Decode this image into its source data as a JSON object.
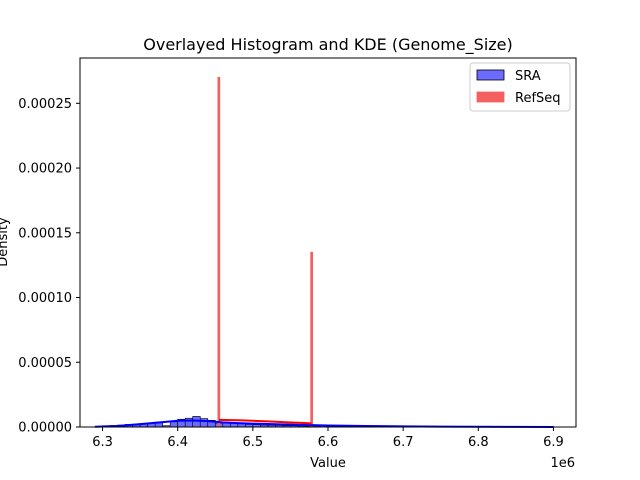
{
  "chart_data": {
    "type": "histogram-kde",
    "title": "Overlayed Histogram and KDE (Genome_Size)",
    "xlabel": "Value",
    "ylabel": "Density",
    "x_offset_label": "1e6",
    "xlim": [
      6.27,
      6.93
    ],
    "ylim": [
      0,
      0.000285
    ],
    "x_ticks": [
      6.3,
      6.4,
      6.5,
      6.6,
      6.7,
      6.8,
      6.9
    ],
    "x_tick_labels": [
      "6.3",
      "6.4",
      "6.5",
      "6.6",
      "6.7",
      "6.8",
      "6.9"
    ],
    "y_ticks": [
      0,
      5e-05,
      0.0001,
      0.00015,
      0.0002,
      0.00025
    ],
    "y_tick_labels": [
      "0.00000",
      "0.00005",
      "0.00010",
      "0.00015",
      "0.00020",
      "0.00025"
    ],
    "legend": {
      "placement": "top-right"
    },
    "series": [
      {
        "name": "SRA",
        "color": "#0000ff",
        "fill": "#6b6bff",
        "bins": [
          {
            "x0": 6.29,
            "x1": 6.3,
            "value": 5e-07
          },
          {
            "x0": 6.3,
            "x1": 6.31,
            "value": 1e-06
          },
          {
            "x0": 6.31,
            "x1": 6.32,
            "value": 1.2e-06
          },
          {
            "x0": 6.32,
            "x1": 6.33,
            "value": 1.5e-06
          },
          {
            "x0": 6.33,
            "x1": 6.34,
            "value": 2e-06
          },
          {
            "x0": 6.34,
            "x1": 6.35,
            "value": 2.2e-06
          },
          {
            "x0": 6.35,
            "x1": 6.36,
            "value": 2.8e-06
          },
          {
            "x0": 6.36,
            "x1": 6.37,
            "value": 3e-06
          },
          {
            "x0": 6.37,
            "x1": 6.38,
            "value": 3.8e-06
          },
          {
            "x0": 6.38,
            "x1": 6.39,
            "value": 1e-06
          },
          {
            "x0": 6.39,
            "x1": 6.4,
            "value": 4e-06
          },
          {
            "x0": 6.4,
            "x1": 6.41,
            "value": 6e-06
          },
          {
            "x0": 6.41,
            "x1": 6.42,
            "value": 6.8e-06
          },
          {
            "x0": 6.42,
            "x1": 6.43,
            "value": 8.2e-06
          },
          {
            "x0": 6.43,
            "x1": 6.44,
            "value": 6.5e-06
          },
          {
            "x0": 6.44,
            "x1": 6.45,
            "value": 5.2e-06
          },
          {
            "x0": 6.45,
            "x1": 6.46,
            "value": 3e-06
          },
          {
            "x0": 6.46,
            "x1": 6.47,
            "value": 3e-06
          },
          {
            "x0": 6.47,
            "x1": 6.48,
            "value": 2.8e-06
          },
          {
            "x0": 6.48,
            "x1": 6.49,
            "value": 2.5e-06
          },
          {
            "x0": 6.49,
            "x1": 6.5,
            "value": 2e-06
          },
          {
            "x0": 6.5,
            "x1": 6.51,
            "value": 1.8e-06
          },
          {
            "x0": 6.51,
            "x1": 6.52,
            "value": 1.5e-06
          },
          {
            "x0": 6.52,
            "x1": 6.53,
            "value": 1.4e-06
          },
          {
            "x0": 6.53,
            "x1": 6.54,
            "value": 1.2e-06
          },
          {
            "x0": 6.54,
            "x1": 6.55,
            "value": 1e-06
          },
          {
            "x0": 6.55,
            "x1": 6.56,
            "value": 1e-06
          },
          {
            "x0": 6.56,
            "x1": 6.57,
            "value": 8e-07
          },
          {
            "x0": 6.57,
            "x1": 6.58,
            "value": 7e-07
          },
          {
            "x0": 6.58,
            "x1": 6.59,
            "value": 4e-07
          }
        ],
        "kde": {
          "x": [
            6.29,
            6.32,
            6.35,
            6.38,
            6.4,
            6.42,
            6.44,
            6.46,
            6.48,
            6.5,
            6.55,
            6.6,
            6.65,
            6.7,
            6.75,
            6.8,
            6.85,
            6.9
          ],
          "y": [
            2e-07,
            8e-07,
            2.2e-06,
            3.8e-06,
            4.8e-06,
            5e-06,
            4.5e-06,
            3.6e-06,
            3e-06,
            2.6e-06,
            1.8e-06,
            1.2e-06,
            8e-07,
            5e-07,
            3e-07,
            2e-07,
            1e-07,
            5e-08
          ]
        }
      },
      {
        "name": "RefSeq",
        "color": "#ff0000",
        "fill": "#f46060",
        "bins": [
          {
            "x0": 6.4535,
            "x1": 6.456,
            "value": 0.00027
          },
          {
            "x0": 6.577,
            "x1": 6.5795,
            "value": 0.000135
          }
        ],
        "kde": {
          "x": [
            6.455,
            6.48,
            6.5,
            6.52,
            6.54,
            6.56,
            6.578
          ],
          "y": [
            5.5e-06,
            5.2e-06,
            4.8e-06,
            4.3e-06,
            3.8e-06,
            3.3e-06,
            2.8e-06
          ]
        }
      }
    ]
  }
}
